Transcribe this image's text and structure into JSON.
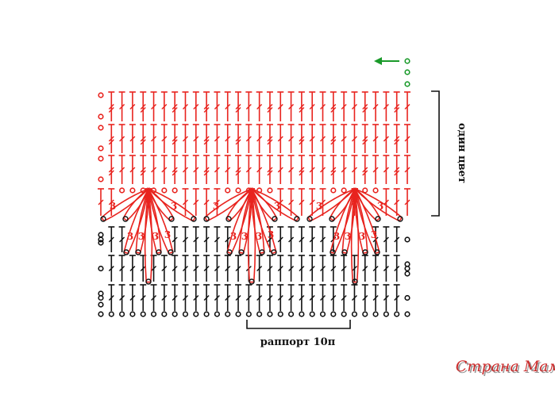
{
  "labels": {
    "side_bracket": "один цвет",
    "repeat_bracket": "раппорт 10п",
    "petal_count": "3",
    "watermark": "Страна Мам"
  },
  "colors": {
    "pattern_red": "#e8231e",
    "pattern_black": "#111111",
    "start_green": "#1a9a2a",
    "watermark_red": "#cc2a2a",
    "watermark_shadow": "#999999"
  },
  "icons": {
    "direction_marker": "arrow-left-icon",
    "chain_stitch": "chain-stitch-icon",
    "double_crochet": "double-crochet-icon",
    "treble_crochet": "treble-crochet-icon",
    "cluster_petal": "cluster-petal-icon"
  }
}
